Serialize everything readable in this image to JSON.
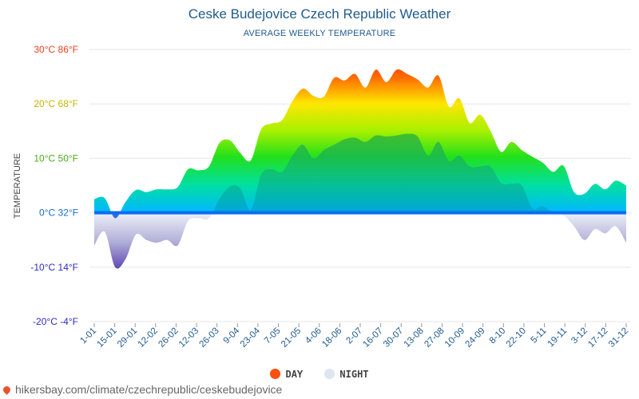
{
  "page": {
    "title": "Ceske Budejovice Czech Republic Weather",
    "subtitle": "AVERAGE WEEKLY TEMPERATURE",
    "ylabel": "TEMPERATURE",
    "footer_url": "hikersbay.com/climate/czechrepublic/ceskebudejovice"
  },
  "legend": {
    "day_label": "DAY",
    "night_label": "NIGHT",
    "day_color": "#ff5010",
    "night_color": "#dde6f2"
  },
  "chart_data": {
    "type": "area",
    "title": "Ceske Budejovice Czech Republic Weather",
    "subtitle": "AVERAGE WEEKLY TEMPERATURE",
    "ylabel": "TEMPERATURE",
    "ylim": [
      -20,
      30
    ],
    "yticks": [
      {
        "value": 30,
        "label": "30°C 86°F",
        "color": "#e8401c"
      },
      {
        "value": 20,
        "label": "20°C 68°F",
        "color": "#c9b400"
      },
      {
        "value": 10,
        "label": "10°C 50°F",
        "color": "#4caa1a"
      },
      {
        "value": 0,
        "label": "0°C 32°F",
        "color": "#1a6cc8"
      },
      {
        "value": -10,
        "label": "-10°C 14°F",
        "color": "#2b2bc8"
      },
      {
        "value": -20,
        "label": "-20°C -4°F",
        "color": "#2b2bc8"
      }
    ],
    "x_labels": [
      "1-01",
      "15-01",
      "29-01",
      "12-02",
      "26-02",
      "12-03",
      "26-03",
      "9-04",
      "23-04",
      "7-05",
      "21-05",
      "4-06",
      "18-06",
      "2-07",
      "16-07",
      "30-07",
      "13-08",
      "27-08",
      "10-09",
      "24-09",
      "8-10",
      "22-10",
      "5-11",
      "19-11",
      "3-12",
      "17-12",
      "31-12"
    ],
    "grid": true,
    "series": [
      {
        "name": "DAY",
        "values": [
          2.5,
          2.7,
          -1.0,
          2.0,
          4.2,
          3.8,
          4.3,
          4.3,
          4.7,
          8.0,
          7.8,
          8.5,
          12.8,
          13.3,
          11.0,
          9.6,
          15.3,
          16.4,
          17.0,
          20.5,
          22.8,
          21.5,
          21.3,
          24.8,
          24.3,
          25.5,
          23.0,
          26.3,
          24.0,
          26.3,
          25.5,
          24.5,
          23.0,
          25.2,
          19.5,
          21.0,
          16.5,
          18.0,
          15.0,
          11.2,
          13.0,
          11.5,
          10.3,
          9.2,
          7.5,
          8.6,
          3.8,
          3.5,
          5.3,
          4.3,
          5.9,
          5.0
        ]
      },
      {
        "name": "NIGHT",
        "values": [
          -6.0,
          -3.5,
          -10.0,
          -8.5,
          -4.0,
          -5.0,
          -5.5,
          -5.0,
          -6.0,
          -1.5,
          -1.0,
          -1.0,
          2.5,
          4.8,
          4.5,
          0.5,
          7.0,
          8.0,
          7.5,
          10.5,
          12.5,
          10.0,
          11.5,
          12.5,
          13.5,
          13.8,
          13.0,
          14.2,
          14.0,
          14.2,
          14.5,
          14.0,
          10.5,
          13.0,
          9.5,
          10.5,
          8.5,
          8.5,
          8.5,
          5.5,
          5.3,
          5.0,
          0.8,
          1.2,
          0.0,
          -0.5,
          -2.5,
          -5.0,
          -3.0,
          -3.8,
          -2.5,
          -5.5
        ]
      }
    ],
    "legend_position": "bottom-center"
  }
}
